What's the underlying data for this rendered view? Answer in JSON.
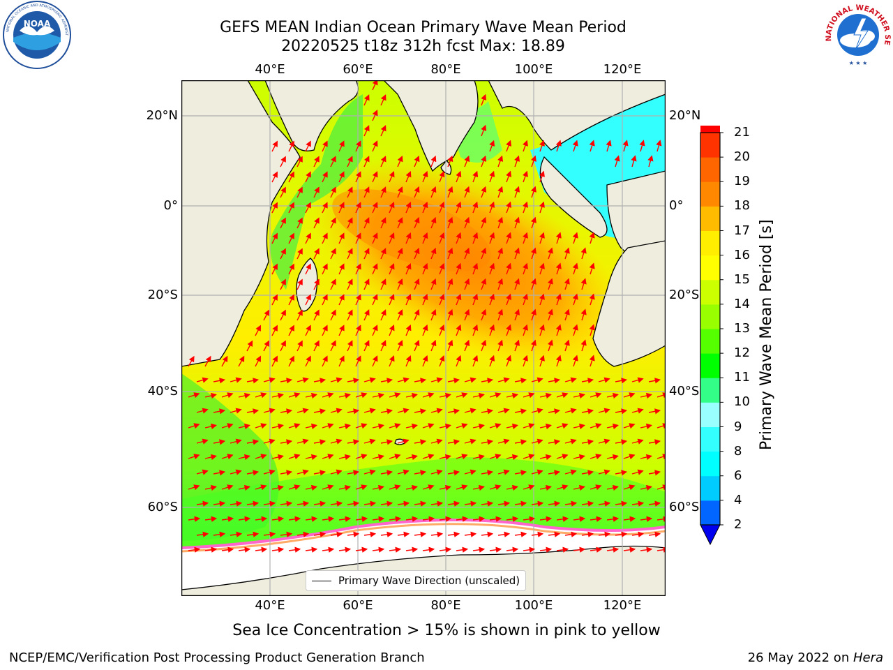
{
  "header": {
    "title_line1": "GEFS MEAN Indian Ocean Primary Wave Mean Period",
    "title_line2": "20220525 t18z 312h fcst   Max: 18.89"
  },
  "map": {
    "region": "Indian Ocean",
    "lon_range": [
      20,
      130
    ],
    "lat_range": [
      -72,
      28
    ],
    "lon_ticks": [
      "40°E",
      "60°E",
      "80°E",
      "100°E",
      "120°E"
    ],
    "lon_tick_values": [
      40,
      60,
      80,
      100,
      120
    ],
    "lat_ticks": [
      "20°N",
      "0°",
      "20°S",
      "40°S",
      "60°S"
    ],
    "lat_tick_values": [
      20,
      0,
      -20,
      -40,
      -60
    ],
    "land_color": "#efedde",
    "ice_color": "#ffffff",
    "arrow_color": "#ff0000",
    "grid": true
  },
  "legend": {
    "label": "Primary Wave Direction (unscaled)"
  },
  "colorbar": {
    "title": "Primary Wave Mean Period [s]",
    "levels": [
      "2",
      "4",
      "6",
      "8",
      "9",
      "10",
      "11",
      "12",
      "13",
      "14",
      "15",
      "16",
      "17",
      "18",
      "19",
      "20",
      "21"
    ],
    "colors": [
      "#0066ff",
      "#00ccff",
      "#00ffff",
      "#33ffff",
      "#99ffff",
      "#33ff88",
      "#00ff00",
      "#55ff00",
      "#99ff00",
      "#ccff00",
      "#ffff00",
      "#ffee00",
      "#ffbb00",
      "#ff8800",
      "#ff6600",
      "#ff3300",
      "#ff0000"
    ],
    "extend_color": "#0000ee"
  },
  "caption": "Sea Ice Concentration > 15% is shown in pink to yellow",
  "footer": {
    "left": "NCEP/EMC/Verification Post Processing Product Generation Branch",
    "right_prefix": "26 May 2022 on ",
    "right_machine": "Hera"
  },
  "logos": {
    "noaa": "NOAA",
    "noaa_ring_text": "NATIONAL OCEANIC AND ATMOSPHERIC ADMINISTRATION · U.S. DEPARTMENT OF COMMERCE",
    "nws_ring_text": "NATIONAL WEATHER SERVICE"
  }
}
